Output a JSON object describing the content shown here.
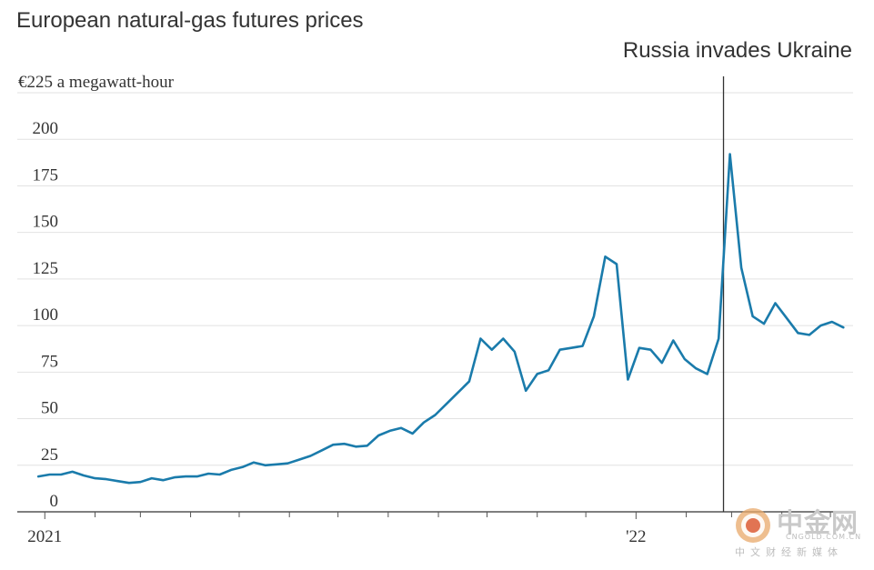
{
  "chart_data": {
    "type": "line",
    "title": "European natural-gas futures prices",
    "unit_label": "€225 a megawatt-hour",
    "ylim": [
      0,
      225
    ],
    "y_ticks": [
      {
        "value": 0,
        "label": "0"
      },
      {
        "value": 25,
        "label": "25"
      },
      {
        "value": 50,
        "label": "50"
      },
      {
        "value": 75,
        "label": "75"
      },
      {
        "value": 100,
        "label": "100"
      },
      {
        "value": 125,
        "label": "125"
      },
      {
        "value": 150,
        "label": "150"
      },
      {
        "value": 175,
        "label": "175"
      },
      {
        "value": 200,
        "label": "200"
      }
    ],
    "x_labels": [
      {
        "date": "2021-01-01",
        "label": "2021"
      },
      {
        "date": "2022-01-01",
        "label": "'22"
      }
    ],
    "xlim": [
      "2020-12-15",
      "2022-05-15"
    ],
    "annotation": {
      "date": "2022-02-24",
      "label": "Russia invades Ukraine"
    },
    "grid": true,
    "color": "#1a7bab",
    "series": [
      {
        "x": [
          "2020-12-28",
          "2021-01-04",
          "2021-01-11",
          "2021-01-18",
          "2021-01-25",
          "2021-02-01",
          "2021-02-08",
          "2021-02-15",
          "2021-02-22",
          "2021-03-01",
          "2021-03-08",
          "2021-03-15",
          "2021-03-22",
          "2021-03-29",
          "2021-04-05",
          "2021-04-12",
          "2021-04-19",
          "2021-04-26",
          "2021-05-03",
          "2021-05-10",
          "2021-05-17",
          "2021-05-24",
          "2021-05-31",
          "2021-06-07",
          "2021-06-14",
          "2021-06-21",
          "2021-06-28",
          "2021-07-05",
          "2021-07-12",
          "2021-07-19",
          "2021-07-26",
          "2021-08-02",
          "2021-08-09",
          "2021-08-16",
          "2021-08-23",
          "2021-08-30",
          "2021-09-06",
          "2021-09-13",
          "2021-09-20",
          "2021-09-27",
          "2021-10-04",
          "2021-10-11",
          "2021-10-18",
          "2021-10-25",
          "2021-11-01",
          "2021-11-08",
          "2021-11-15",
          "2021-11-22",
          "2021-11-29",
          "2021-12-06",
          "2021-12-13",
          "2021-12-20",
          "2021-12-27",
          "2022-01-03",
          "2022-01-10",
          "2022-01-17",
          "2022-01-24",
          "2022-01-31",
          "2022-02-07",
          "2022-02-14",
          "2022-02-21",
          "2022-02-28",
          "2022-03-07",
          "2022-03-14",
          "2022-03-21",
          "2022-03-28",
          "2022-04-04",
          "2022-04-11",
          "2022-04-18",
          "2022-04-25",
          "2022-05-02",
          "2022-05-09"
        ],
        "values": [
          19,
          20,
          20,
          21.5,
          19.5,
          18,
          17.5,
          16.5,
          15.5,
          16,
          18,
          17,
          18.5,
          19,
          19,
          20.5,
          20,
          22.5,
          24,
          26.5,
          25,
          25.5,
          26,
          28,
          30,
          33,
          36,
          36.5,
          35,
          35.5,
          41,
          43.5,
          45,
          42,
          48,
          52,
          58,
          64,
          70,
          93,
          87,
          93,
          86,
          65,
          74,
          76,
          87,
          88,
          89,
          105,
          137,
          133,
          71,
          88,
          87,
          80,
          92,
          82,
          77,
          74,
          93,
          192,
          131,
          105,
          101,
          112,
          104,
          96,
          95,
          100,
          102,
          99
        ]
      }
    ]
  },
  "watermark": {
    "brand": "中金网",
    "domain": "CNGOLD.COM.CN",
    "subtitle": "中文财经新媒体"
  }
}
